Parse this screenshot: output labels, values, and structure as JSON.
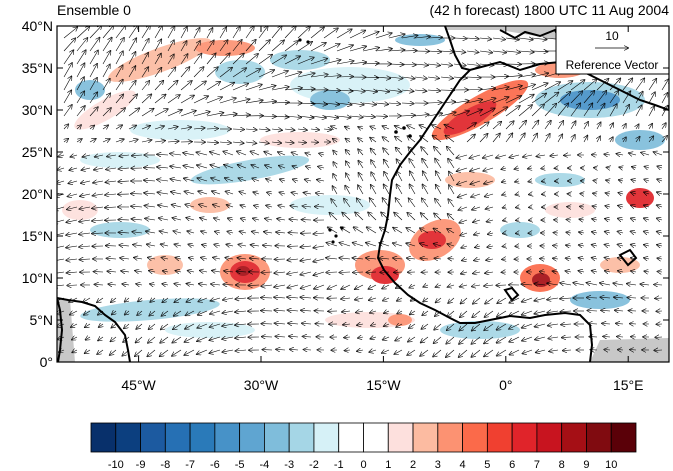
{
  "header": {
    "left_title": "Ensemble 0",
    "right_title": "(42 h forecast) 1800 UTC 11 Aug 2004"
  },
  "map": {
    "lon_range": [
      -55,
      20
    ],
    "lat_range": [
      0,
      40
    ],
    "lat_ticks": [
      {
        "value": 0,
        "label": "0°"
      },
      {
        "value": 5,
        "label": "5°N"
      },
      {
        "value": 10,
        "label": "10°N"
      },
      {
        "value": 15,
        "label": "15°N"
      },
      {
        "value": 20,
        "label": "20°N"
      },
      {
        "value": 25,
        "label": "25°N"
      },
      {
        "value": 30,
        "label": "30°N"
      },
      {
        "value": 35,
        "label": "35°N"
      },
      {
        "value": 40,
        "label": "40°N"
      }
    ],
    "lon_ticks": [
      {
        "value": -45,
        "label": "45°W"
      },
      {
        "value": -30,
        "label": "30°W"
      },
      {
        "value": -15,
        "label": "15°W"
      },
      {
        "value": 0,
        "label": "0°"
      },
      {
        "value": 15,
        "label": "15°E"
      }
    ]
  },
  "reference_vector": {
    "value_label": "10",
    "caption": "Reference Vector"
  },
  "colorbar": {
    "colors": [
      "#08306b",
      "#0c3f7f",
      "#1c5aa0",
      "#2670b4",
      "#2a7ab9",
      "#4792c8",
      "#5fa5d1",
      "#7fbddb",
      "#a5d6e6",
      "#d6f1f7",
      "#ffffff",
      "#ffffff",
      "#fde0dd",
      "#fcbba1",
      "#fc9272",
      "#fb6a4a",
      "#f04030",
      "#e0242a",
      "#c8141f",
      "#a50f15",
      "#800b10",
      "#5a0008"
    ],
    "labels": [
      "-10",
      "-9",
      "-8",
      "-7",
      "-6",
      "-5",
      "-4",
      "-3",
      "-2",
      "-1",
      "0",
      "1",
      "2",
      "3",
      "4",
      "5",
      "6",
      "7",
      "8",
      "9",
      "10"
    ]
  }
}
